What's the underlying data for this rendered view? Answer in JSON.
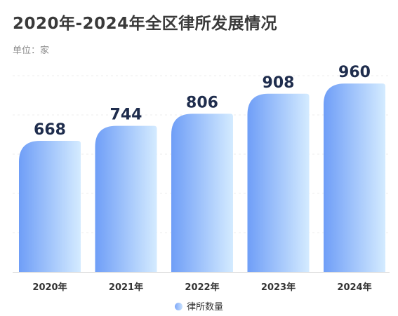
{
  "chart_data": {
    "type": "bar",
    "title": "2020年-2024年全区律所发展情况",
    "subtitle": "单位：家",
    "categories": [
      "2020年",
      "2021年",
      "2022年",
      "2023年",
      "2024年"
    ],
    "series": [
      {
        "name": "律所数量",
        "values": [
          668,
          744,
          806,
          908,
          960
        ]
      }
    ],
    "ylim": [
      0,
      1000
    ],
    "grid": true,
    "legend": "bottom",
    "colors": {
      "bar_start": "#6f9ef7",
      "bar_end": "#d4ebff",
      "label": "#1f2d4d"
    }
  }
}
